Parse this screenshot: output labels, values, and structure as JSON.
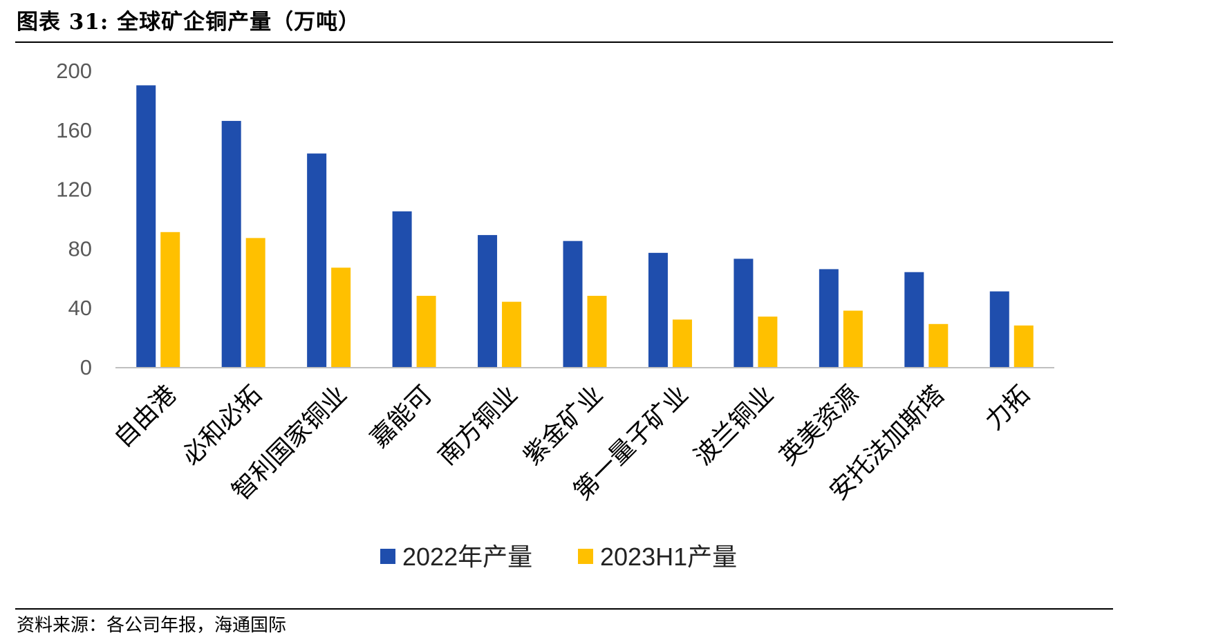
{
  "figure": {
    "title": "图表 31:  全球矿企铜产量（万吨）",
    "source": "资料来源：各公司年报，海通国际"
  },
  "chart_data": {
    "type": "bar",
    "title": "",
    "xlabel": "",
    "ylabel": "",
    "ylim": [
      0,
      200
    ],
    "yticks": [
      0,
      40,
      80,
      120,
      160,
      200
    ],
    "grid": false,
    "legend_position": "bottom",
    "categories": [
      "自由港",
      "必和必拓",
      "智利国家铜业",
      "嘉能可",
      "南方铜业",
      "紫金矿业",
      "第一量子矿业",
      "波兰铜业",
      "英美资源",
      "安托法加斯塔",
      "力拓"
    ],
    "series": [
      {
        "name": "2022年产量",
        "color": "#1F4EAD",
        "values": [
          190,
          166,
          144,
          105,
          89,
          85,
          77,
          73,
          66,
          64,
          51
        ]
      },
      {
        "name": "2023H1产量",
        "color": "#FFC000",
        "values": [
          91,
          87,
          67,
          48,
          44,
          48,
          32,
          34,
          38,
          29,
          28
        ]
      }
    ]
  }
}
